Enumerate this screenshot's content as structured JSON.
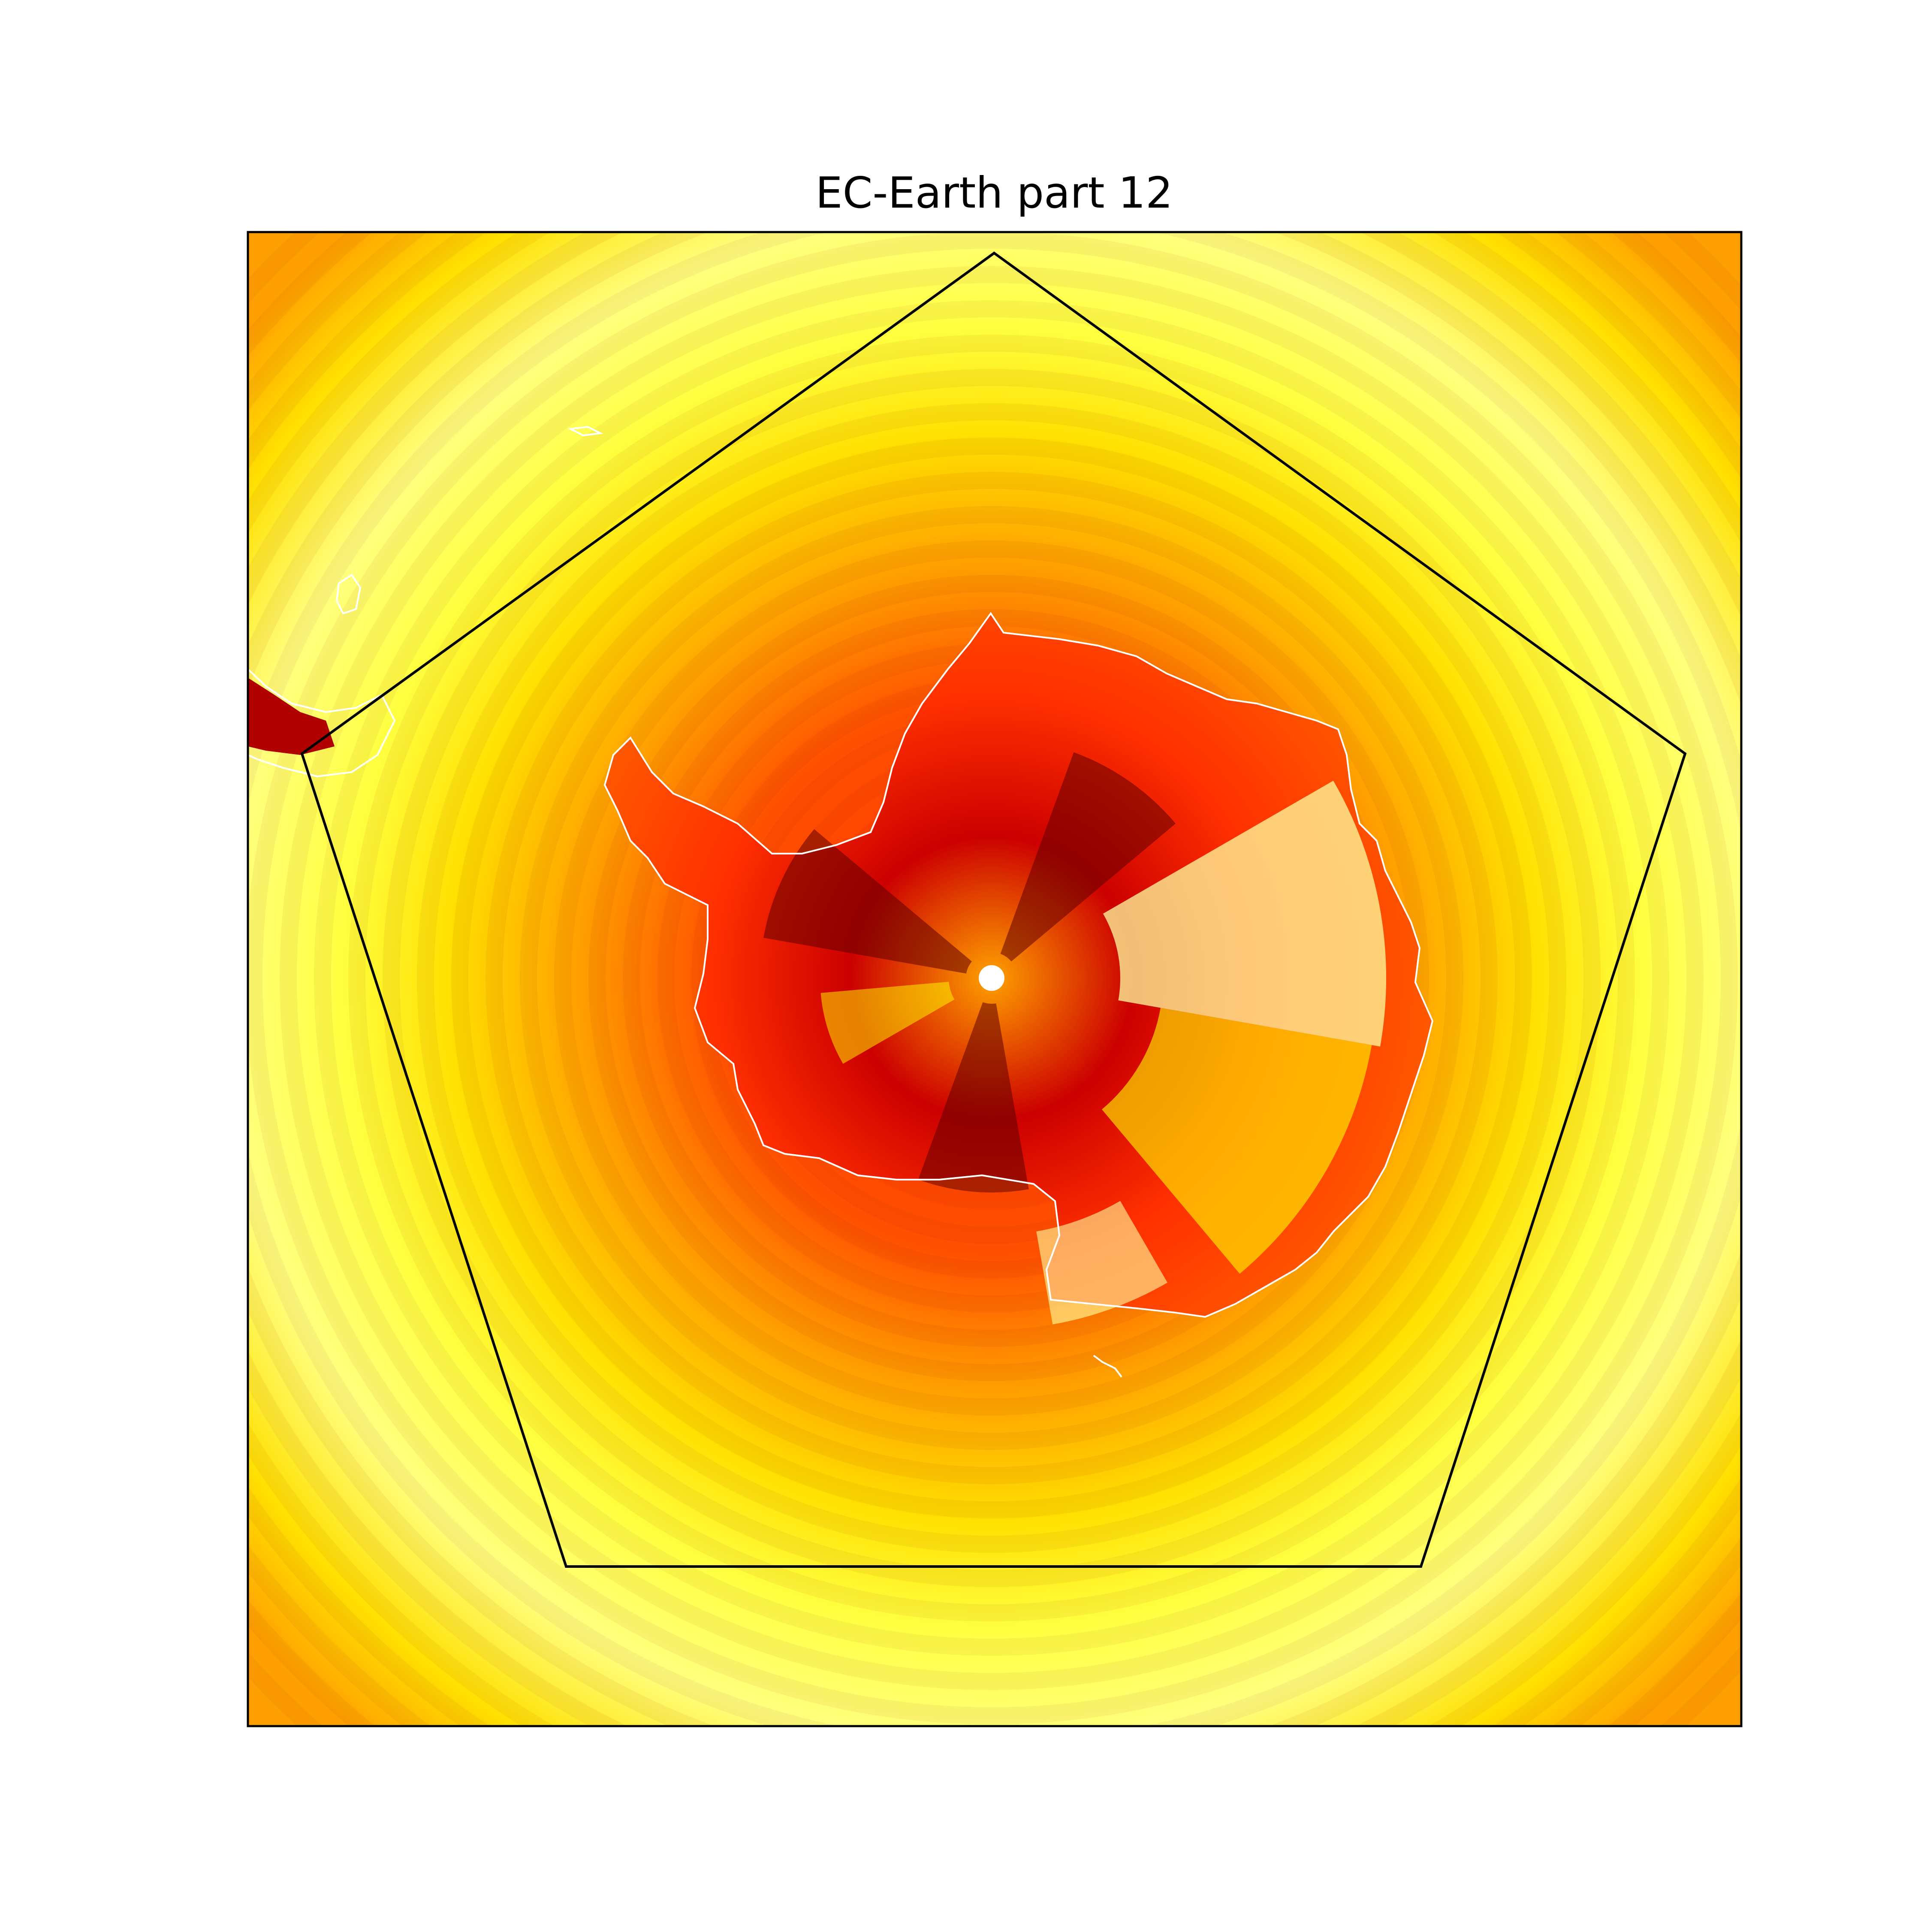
{
  "figure": {
    "title": "EC-Earth part 12"
  },
  "map": {
    "projection": "south-polar-stereographic",
    "region": "Antarctica",
    "colormap": "hot_r",
    "colors": {
      "low": "#ffffa0",
      "mid_low": "#ffff00",
      "mid": "#ffa000",
      "mid_high": "#ff3000",
      "high": "#cc0000",
      "max": "#600000",
      "coastline": "#ffffff",
      "boundary": "#000000"
    },
    "overlays": [
      "coastline",
      "pentagon-boundary"
    ],
    "colorbar": false,
    "grid": false
  }
}
